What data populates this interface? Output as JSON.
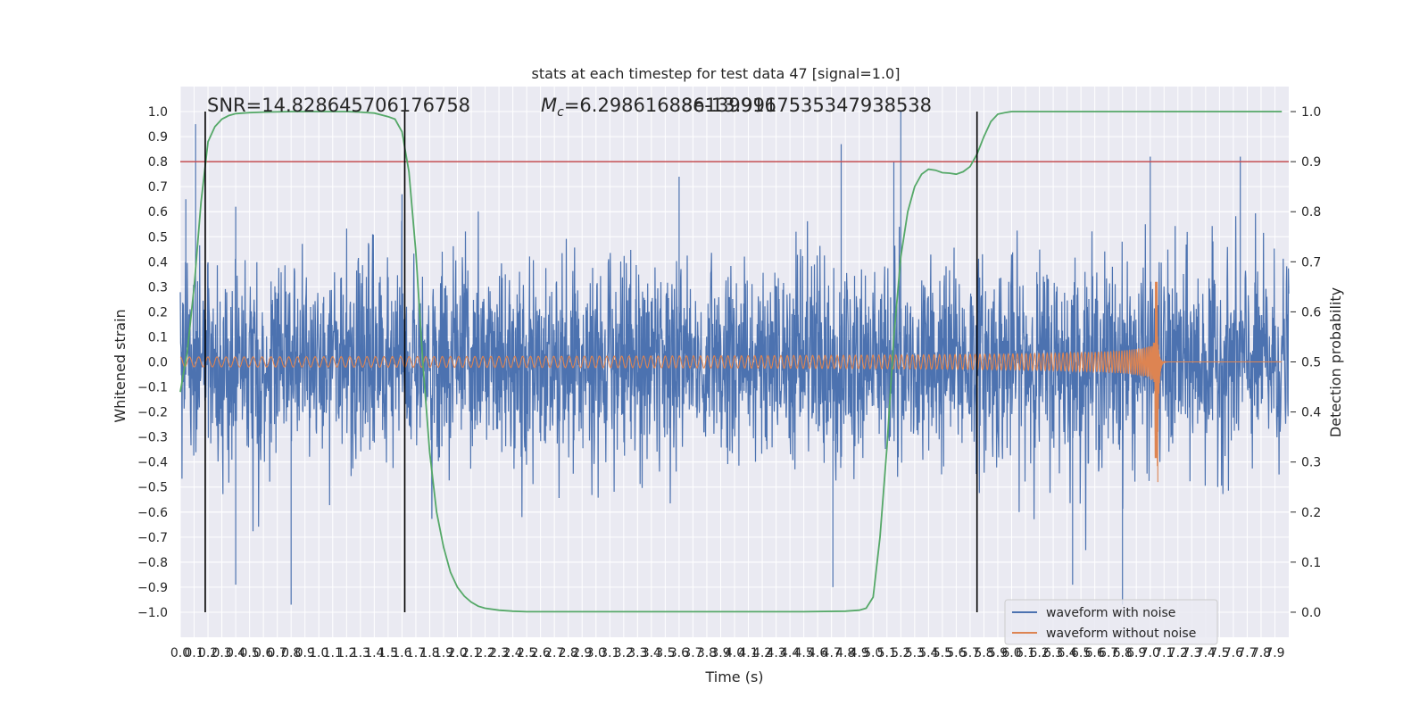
{
  "chart_data": {
    "type": "line",
    "title": "stats at each timestep for test data 47 [signal=1.0]",
    "xlabel": "Time (s)",
    "ylabel": "Whitened strain",
    "y2label": "Detection probability",
    "xlim": [
      0.0,
      8.0
    ],
    "ylim": [
      -1.1,
      1.1
    ],
    "y2lim": [
      -0.05,
      1.05
    ],
    "grid": true,
    "legend_position": "bottom-right",
    "x_tick_labels": [
      "0.0",
      "0.1",
      "0.2",
      "0.3",
      "0.4",
      "0.5",
      "0.6",
      "0.7",
      "0.8",
      "0.9",
      "1.0",
      "1.1",
      "1.2",
      "1.3",
      "1.4",
      "1.5",
      "1.6",
      "1.7",
      "1.8",
      "1.9",
      "2.0",
      "2.1",
      "2.2",
      "2.3",
      "2.4",
      "2.5",
      "2.6",
      "2.7",
      "2.8",
      "2.9",
      "3.0",
      "3.1",
      "3.2",
      "3.3",
      "3.4",
      "3.5",
      "3.6",
      "3.7",
      "3.8",
      "3.9",
      "4.0",
      "4.1",
      "4.2",
      "4.3",
      "4.4",
      "4.5",
      "4.6",
      "4.7",
      "4.8",
      "4.9",
      "5.0",
      "5.1",
      "5.2",
      "5.3",
      "5.4",
      "5.5",
      "5.6",
      "5.7",
      "5.8",
      "5.9",
      "6.0",
      "6.1",
      "6.2",
      "6.3",
      "6.4",
      "6.5",
      "6.6",
      "6.7",
      "6.8",
      "6.9",
      "7.0",
      "7.1",
      "7.2",
      "7.3",
      "7.4",
      "7.5",
      "7.6",
      "7.7",
      "7.8",
      "7.9"
    ],
    "y_tick_labels": [
      "1.0",
      "0.9",
      "0.8",
      "0.7",
      "0.6",
      "0.5",
      "0.4",
      "0.3",
      "0.2",
      "0.1",
      "0.0",
      "−0.1",
      "−0.2",
      "−0.3",
      "−0.4",
      "−0.5",
      "−0.6",
      "−0.7",
      "−0.8",
      "−0.9",
      "−1.0"
    ],
    "y2_tick_labels": [
      "1.0",
      "0.9",
      "0.8",
      "0.7",
      "0.6",
      "0.5",
      "0.4",
      "0.3",
      "0.2",
      "0.1",
      "0.0"
    ],
    "annotations": {
      "snr": "SNR=14.828645706176758",
      "mc_symbol": "M",
      "mc_sub": "c",
      "mc_value": "=6.298616886139916",
      "mc_overlap": "8e-13.9917535347938538"
    },
    "threshold_line": {
      "y2": 0.9,
      "color": "#c44e52"
    },
    "vertical_lines_x": [
      0.18,
      1.62,
      5.75
    ],
    "series": [
      {
        "name": "waveform with noise",
        "color": "#4c72b0",
        "kind": "noise",
        "envelope_sigma": 0.2,
        "x_range": [
          0.0,
          8.0
        ],
        "peaks": [
          {
            "x": 0.11,
            "y": 0.95
          },
          {
            "x": 0.04,
            "y": 0.65
          },
          {
            "x": 0.4,
            "y": 0.62
          },
          {
            "x": 0.8,
            "y": -0.97
          },
          {
            "x": 0.4,
            "y": -0.89
          },
          {
            "x": 4.71,
            "y": -0.9
          },
          {
            "x": 4.77,
            "y": 0.87
          },
          {
            "x": 5.15,
            "y": 0.8
          },
          {
            "x": 5.2,
            "y": 1.0
          },
          {
            "x": 6.8,
            "y": -0.97
          },
          {
            "x": 7.0,
            "y": 0.82
          },
          {
            "x": 7.65,
            "y": 0.82
          },
          {
            "x": 6.44,
            "y": -0.89
          },
          {
            "x": 1.6,
            "y": 0.67
          },
          {
            "x": 3.6,
            "y": 0.74
          }
        ]
      },
      {
        "name": "waveform without noise",
        "color": "#dd8452",
        "kind": "chirp",
        "merger_time": 7.05,
        "amplitude_start": 0.02,
        "amplitude_peak": 0.32,
        "amplitude_trough": -0.48
      },
      {
        "name": "detection probability",
        "axis": "y2",
        "color": "#55a868",
        "x": [
          0.0,
          0.05,
          0.1,
          0.15,
          0.2,
          0.25,
          0.3,
          0.35,
          0.4,
          0.5,
          0.6,
          0.8,
          1.0,
          1.2,
          1.3,
          1.4,
          1.5,
          1.55,
          1.6,
          1.65,
          1.7,
          1.75,
          1.8,
          1.85,
          1.9,
          1.95,
          2.0,
          2.05,
          2.1,
          2.15,
          2.2,
          2.3,
          2.4,
          2.5,
          3.0,
          3.5,
          4.0,
          4.5,
          4.8,
          4.9,
          4.95,
          5.0,
          5.05,
          5.1,
          5.15,
          5.2,
          5.25,
          5.3,
          5.35,
          5.4,
          5.45,
          5.5,
          5.55,
          5.6,
          5.65,
          5.7,
          5.75,
          5.8,
          5.85,
          5.9,
          5.95,
          6.0,
          6.1,
          6.2,
          6.5,
          7.0,
          7.5,
          7.95
        ],
        "y": [
          0.44,
          0.52,
          0.65,
          0.82,
          0.94,
          0.97,
          0.985,
          0.992,
          0.996,
          0.998,
          0.999,
          1.0,
          1.0,
          1.0,
          0.999,
          0.997,
          0.99,
          0.985,
          0.96,
          0.88,
          0.72,
          0.5,
          0.32,
          0.2,
          0.13,
          0.08,
          0.05,
          0.032,
          0.02,
          0.012,
          0.008,
          0.004,
          0.002,
          0.001,
          0.001,
          0.001,
          0.001,
          0.001,
          0.002,
          0.004,
          0.008,
          0.03,
          0.15,
          0.33,
          0.55,
          0.71,
          0.8,
          0.85,
          0.875,
          0.885,
          0.883,
          0.878,
          0.877,
          0.875,
          0.88,
          0.89,
          0.915,
          0.95,
          0.98,
          0.995,
          0.998,
          1.0,
          1.0,
          1.0,
          1.0,
          1.0,
          1.0,
          1.0
        ]
      }
    ],
    "legend_entries": [
      "waveform with noise",
      "waveform without noise"
    ]
  }
}
